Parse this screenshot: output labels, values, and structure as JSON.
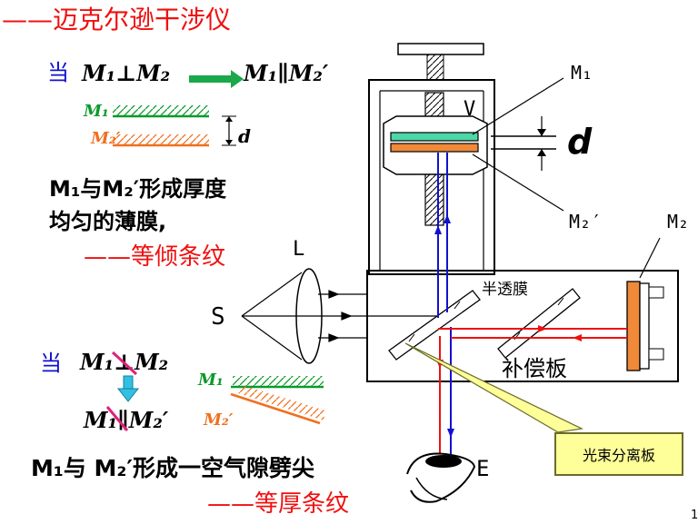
{
  "title": "——迈克尔逊干涉仪",
  "case1": {
    "when": "当",
    "relation_left": "M₁⊥M₂",
    "relation_right": "M₁∥M₂′",
    "label_m1": "M₁",
    "label_m2p": "M₂′",
    "label_d": "d",
    "desc_line1": "M₁与M₂′形成厚度",
    "desc_line2": "均匀的薄膜,",
    "result": "——等倾条纹"
  },
  "case2": {
    "when": "当",
    "relation_top": "M₁⊥M₂",
    "relation_bottom": "M₁∥M₂′",
    "label_m1": "M₁",
    "label_m2p": "M₂′",
    "desc": "M₁与 M₂′形成一空气隙劈尖",
    "result": "——等厚条纹"
  },
  "apparatus": {
    "label_M1": "M₁",
    "label_V": "V",
    "label_d": "d",
    "label_M2p": "M₂′",
    "label_M2": "M₂",
    "label_L": "L",
    "label_S": "S",
    "label_E": "E",
    "label_half_mirror": "半透膜",
    "label_compensator": "补偿板",
    "callout": "光束分离板"
  },
  "page_number": "1",
  "colors": {
    "title_red": "#f0100f",
    "heading_blue": "#1111d0",
    "mirror_green": "#0a9a2a",
    "mirror_orange": "#f07020",
    "callout_bg": "#ffff99",
    "callout_border": "#6b6b2b"
  }
}
